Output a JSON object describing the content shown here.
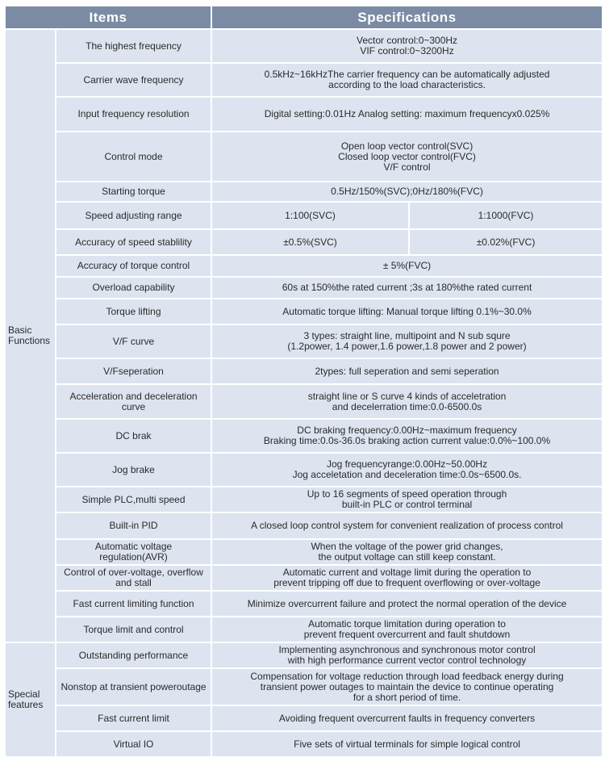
{
  "header": {
    "items": "Items",
    "specifications": "Specifications"
  },
  "groups": [
    {
      "label": "Basic Functions",
      "rows": [
        {
          "item": "The highest frequency",
          "spec": [
            "Vector control:0~300Hz",
            "VIF control:0~3200Hz"
          ]
        },
        {
          "item": "Carrier wave frequency",
          "spec": [
            "0.5kHz~16kHzThe carrier frequency can be automatically adjusted",
            "according to the load characteristics."
          ]
        },
        {
          "item": "Input frequency resolution",
          "spec": [
            "Digital setting:0.01Hz Analog setting: maximum frequencyx0.025%"
          ]
        },
        {
          "item": "Control mode",
          "spec": [
            "Open loop vector control(SVC)",
            "Closed loop vector control(FVC)",
            "V/F control"
          ]
        },
        {
          "item": "Starting torque",
          "spec": [
            "0.5Hz/150%(SVC);0Hz/180%(FVC)"
          ]
        },
        {
          "item": "Speed adjusting range",
          "split": [
            "1:100(SVC)",
            "1:1000(FVC)"
          ]
        },
        {
          "item": "Accuracy of speed stablility",
          "split": [
            "±0.5%(SVC)",
            "±0.02%(FVC)"
          ]
        },
        {
          "item": "Accuracy of torque control",
          "spec": [
            "± 5%(FVC)"
          ]
        },
        {
          "item": "Overload capability",
          "spec": [
            "60s at 150%the rated current ;3s at 180%the rated current"
          ]
        },
        {
          "item": "Torque lifting",
          "spec": [
            "Automatic torque lifting: Manual torque lifting 0.1%~30.0%"
          ]
        },
        {
          "item": "V/F curve",
          "spec": [
            "3 types: straight line, multipoint and N sub squre",
            "(1.2power, 1.4 power,1.6 power,1.8 power and 2 power)"
          ]
        },
        {
          "item": "V/Fseperation",
          "spec": [
            "2types: full seperation and semi seperation"
          ]
        },
        {
          "item": "Acceleration and deceleration curve",
          "spec": [
            "straight line or S curve 4 kinds of acceletration",
            "and decelerration time:0.0-6500.0s"
          ]
        },
        {
          "item": "DC brak",
          "spec": [
            "DC braking frequency:0.00Hz~maximum frequency",
            "Braking time:0.0s-36.0s braking action current value:0.0%~100.0%"
          ]
        },
        {
          "item": "Jog brake",
          "spec": [
            "Jog frequencyrange:0.00Hz~50.00Hz",
            "Jog acceletation and deceleration time:0.0s~6500.0s."
          ]
        },
        {
          "item": "Simple PLC,multi speed",
          "spec": [
            "Up to 16 segments of speed operation through",
            "built-in PLC or control terminal"
          ]
        },
        {
          "item": "Built-in PID",
          "spec": [
            "A closed loop control system for convenient realization of process control"
          ]
        },
        {
          "item": "Automatic voltage regulation(AVR)",
          "spec": [
            "When the voltage of the power grid changes,",
            "the output voltage can still keep constant."
          ]
        },
        {
          "item": "Control of over-voltage, overflow and stall",
          "spec": [
            "Automatic current and voltage limit during the operation to",
            "prevent tripping off due to frequent overflowing or over-voltage"
          ]
        },
        {
          "item": "Fast current limiting function",
          "spec": [
            "Minimize overcurrent failure and protect the normal operation of the device"
          ]
        },
        {
          "item": "Torque limit and control",
          "spec": [
            "Automatic torque limitation during operation to",
            "prevent frequent overcurrent and fault shutdown"
          ]
        }
      ]
    },
    {
      "label": "Special features",
      "rows": [
        {
          "item": "Outstanding performance",
          "spec": [
            "Implementing asynchronous and synchronous motor control",
            "with high performance current vector control technology"
          ]
        },
        {
          "item": "Nonstop at transient poweroutage",
          "spec": [
            "Compensation for voltage reduction through load feedback energy during",
            "transient power outages to maintain the device to continue operating",
            "for a short period of time."
          ]
        },
        {
          "item": "Fast current limit",
          "spec": [
            "Avoiding frequent overcurrent faults in frequency converters"
          ]
        },
        {
          "item": "Virtual IO",
          "spec": [
            "Five sets of virtual terminals for simple logical control"
          ]
        }
      ]
    }
  ],
  "colors": {
    "header_bg": "#7b8ba4",
    "cell_bg": "#dde4f0",
    "grid": "#ffffff"
  }
}
